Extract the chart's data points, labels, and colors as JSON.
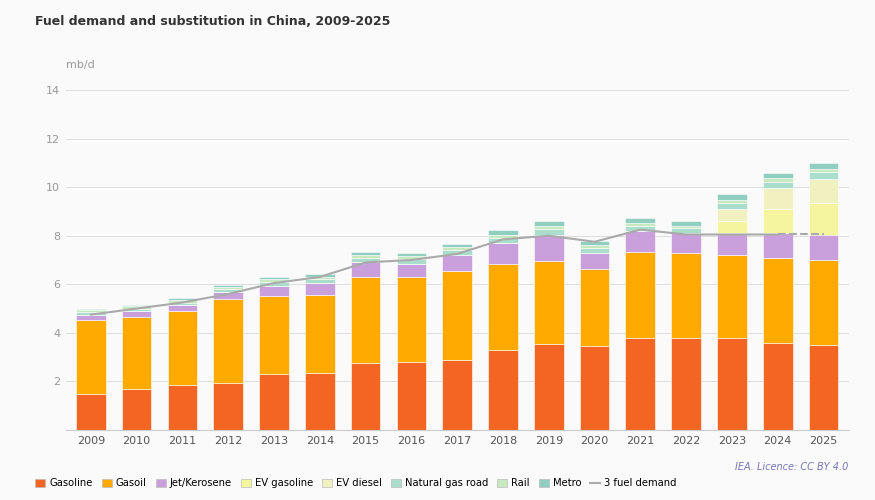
{
  "title": "Fuel demand and substitution in China, 2009-2025",
  "ylabel": "mb/d",
  "years": [
    2009,
    2010,
    2011,
    2012,
    2013,
    2014,
    2015,
    2016,
    2017,
    2018,
    2019,
    2020,
    2021,
    2022,
    2023,
    2024,
    2025
  ],
  "gasoline": [
    1.5,
    1.7,
    1.85,
    1.95,
    2.3,
    2.35,
    2.75,
    2.8,
    2.9,
    3.3,
    3.55,
    3.45,
    3.8,
    3.8,
    3.8,
    3.6,
    3.5
  ],
  "gasoil": [
    3.05,
    2.95,
    3.05,
    3.45,
    3.2,
    3.2,
    3.55,
    3.5,
    3.65,
    3.55,
    3.4,
    3.2,
    3.55,
    3.5,
    3.4,
    3.5,
    3.5
  ],
  "jet": [
    0.2,
    0.25,
    0.25,
    0.3,
    0.45,
    0.5,
    0.6,
    0.55,
    0.65,
    0.85,
    1.1,
    0.65,
    0.85,
    0.8,
    0.9,
    1.0,
    1.05
  ],
  "ev_gasoline": [
    0.0,
    0.0,
    0.0,
    0.0,
    0.0,
    0.0,
    0.0,
    0.0,
    0.0,
    0.0,
    0.0,
    0.0,
    0.0,
    0.0,
    0.5,
    1.0,
    1.3
  ],
  "ev_diesel": [
    0.0,
    0.0,
    0.0,
    0.0,
    0.0,
    0.0,
    0.0,
    0.0,
    0.0,
    0.0,
    0.0,
    0.0,
    0.0,
    0.0,
    0.5,
    0.85,
    1.0
  ],
  "ng_road": [
    0.1,
    0.1,
    0.1,
    0.1,
    0.15,
    0.15,
    0.2,
    0.18,
    0.2,
    0.22,
    0.22,
    0.18,
    0.22,
    0.2,
    0.25,
    0.27,
    0.27
  ],
  "rail": [
    0.1,
    0.1,
    0.1,
    0.1,
    0.12,
    0.12,
    0.12,
    0.12,
    0.12,
    0.12,
    0.12,
    0.12,
    0.12,
    0.12,
    0.14,
    0.14,
    0.14
  ],
  "metro": [
    0.05,
    0.05,
    0.07,
    0.07,
    0.1,
    0.1,
    0.12,
    0.13,
    0.15,
    0.18,
    0.2,
    0.18,
    0.2,
    0.2,
    0.22,
    0.22,
    0.22
  ],
  "line_values": [
    4.75,
    5.0,
    5.25,
    5.6,
    6.05,
    6.3,
    6.9,
    7.0,
    7.25,
    7.85,
    8.0,
    7.75,
    8.25,
    8.05,
    8.05,
    8.05,
    8.05
  ],
  "bar_colors": {
    "Gasoline": "#F26522",
    "Gasoil": "#FFAA00",
    "Jet/Kerosene": "#C9A0DC",
    "EV gasoline": "#F5F5A0",
    "EV diesel": "#F0F0C0",
    "Natural gas road": "#AADDCC",
    "Rail": "#C8E8C0",
    "Metro": "#90CEC0"
  },
  "legend_colors": {
    "Gasoline": "#F26522",
    "Gasoil": "#FFAA00",
    "Jet/Kerosene": "#C9A0DC",
    "EV gasoline": "#F5F5A0",
    "EV diesel": "#F0F0C0",
    "Natural gas road": "#AADDCC",
    "Rail": "#C8E8C0",
    "Metro": "#90CEC0",
    "3 fuel demand": "#AAAAAA"
  },
  "ylim": [
    0,
    14
  ],
  "yticks": [
    0,
    2,
    4,
    6,
    8,
    10,
    12,
    14
  ],
  "background_color": "#FAFAFA",
  "grid_color": "#DDDDDD",
  "annotation": "IEA. Licence: CC BY 4.0"
}
